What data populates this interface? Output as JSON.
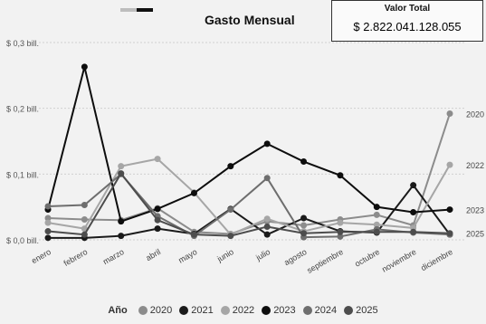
{
  "chart_data": {
    "type": "line",
    "title": "Gasto Mensual",
    "categories": [
      "enero",
      "febrero",
      "marzo",
      "abril",
      "mayo",
      "junio",
      "julio",
      "agosto",
      "septiembre",
      "octubre",
      "noviembre",
      "diciembre"
    ],
    "y_ticks": [
      "$ 0,0 bill.",
      "$ 0,1 bill.",
      "$ 0,2 bill.",
      "$ 0,3 bill."
    ],
    "y_tick_values": [
      0,
      0.1,
      0.2,
      0.3
    ],
    "ylim": [
      0,
      0.3
    ],
    "grid": true,
    "legend_position": "bottom",
    "legend_title": "Año",
    "series": [
      {
        "name": "2020",
        "color": "#8c8c8c",
        "values": [
          0.033,
          0.031,
          0.03,
          0.048,
          0.012,
          0.009,
          0.028,
          0.022,
          0.031,
          0.038,
          0.022,
          0.192
        ]
      },
      {
        "name": "2021",
        "color": "#1a1a1a",
        "values": [
          0.003,
          0.003,
          0.006,
          0.017,
          0.009,
          0.047,
          0.008,
          0.033,
          0.013,
          0.011,
          0.083,
          0.008
        ]
      },
      {
        "name": "2022",
        "color": "#a6a6a6",
        "values": [
          0.026,
          0.017,
          0.112,
          0.123,
          0.072,
          0.008,
          0.032,
          0.013,
          0.026,
          0.023,
          0.018,
          0.114
        ]
      },
      {
        "name": "2023",
        "color": "#0d0d0d",
        "values": [
          0.046,
          0.263,
          0.028,
          0.047,
          0.071,
          0.112,
          0.146,
          0.119,
          0.098,
          0.05,
          0.042,
          0.046
        ]
      },
      {
        "name": "2024",
        "color": "#6e6e6e",
        "values": [
          0.051,
          0.053,
          0.1,
          0.036,
          0.006,
          0.046,
          0.094,
          0.004,
          0.005,
          0.016,
          0.011,
          0.008
        ]
      },
      {
        "name": "2025",
        "color": "#4d4d4d",
        "values": [
          0.013,
          0.008,
          0.101,
          0.03,
          0.008,
          0.006,
          0.02,
          0.01,
          0.012,
          0.012,
          0.012,
          0.01
        ]
      }
    ],
    "end_labels": [
      "2025",
      "2022",
      "2023",
      "2020"
    ]
  },
  "card": {
    "label": "Valor Total",
    "value": "$ 2.822.041.128.055"
  },
  "top_swatch_colors": [
    "#bdbdbd",
    "#111111"
  ]
}
